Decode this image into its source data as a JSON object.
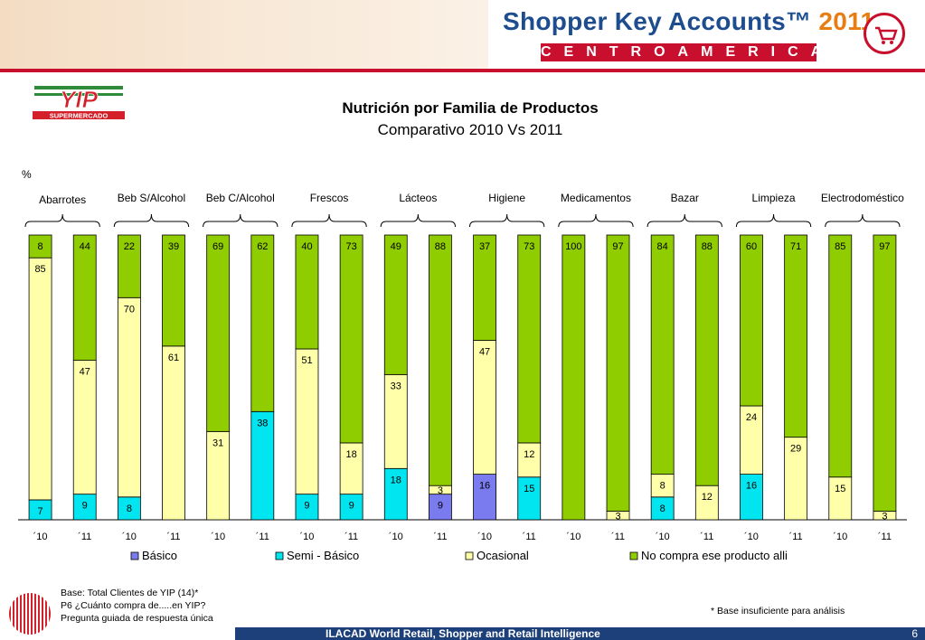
{
  "header": {
    "title_main": "Shopper Key Accounts™",
    "title_year": "2011",
    "subtitle": "CENTROAMERICA",
    "logo_icon": "shopping-cart-icon"
  },
  "brand_logo": {
    "text": "YIP",
    "tagline": "SUPERMERCADO"
  },
  "chart_data": {
    "type": "bar",
    "stacked": true,
    "title": "Nutrición por Familia de Productos",
    "subtitle": "Comparativo 2010 Vs 2011",
    "ylabel": "%",
    "ylim": [
      0,
      100
    ],
    "groups": [
      "Abarrotes",
      "Beb S/Alcohol",
      "Beb C/Alcohol",
      "Frescos",
      "Lácteos",
      "Higiene",
      "Medicamentos",
      "Bazar",
      "Limpieza",
      "Electrodoméstico"
    ],
    "categories": [
      "´10",
      "´11",
      "´10",
      "´11",
      "´10",
      "´11",
      "´10",
      "´11",
      "´10",
      "´11",
      "´10",
      "´11",
      "´10",
      "´11",
      "´10",
      "´11",
      "´10",
      "´11",
      "´10",
      "´11"
    ],
    "series": [
      {
        "name": "Básico",
        "color": "#7b7bf0",
        "values": [
          0,
          0,
          0,
          0,
          0,
          0,
          0,
          0,
          0,
          9,
          16,
          0,
          0,
          0,
          0,
          0,
          0,
          0,
          0,
          0
        ]
      },
      {
        "name": "Semi - Básico",
        "color": "#00e5f0",
        "values": [
          7,
          9,
          8,
          0,
          0,
          38,
          9,
          9,
          18,
          0,
          0,
          15,
          0,
          0,
          8,
          0,
          16,
          0,
          0,
          0
        ]
      },
      {
        "name": "Ocasional",
        "color": "#ffffaa",
        "values": [
          85,
          47,
          70,
          61,
          31,
          0,
          51,
          18,
          33,
          3,
          47,
          12,
          0,
          3,
          8,
          12,
          24,
          29,
          15,
          3
        ]
      },
      {
        "name": "No compra ese producto alli",
        "color": "#8fcc00",
        "values": [
          8,
          44,
          22,
          39,
          69,
          62,
          40,
          73,
          49,
          88,
          37,
          73,
          100,
          97,
          84,
          88,
          60,
          71,
          85,
          97
        ]
      }
    ],
    "legend_position": "bottom",
    "grid": false
  },
  "footer": {
    "note_lines": [
      "Base: Total Clientes de YIP (14)*",
      "P6 ¿Cuánto compra de.....en YIP?",
      "Pregunta guiada de respuesta única"
    ],
    "insufficient_base": "* Base insuficiente para análisis",
    "bar_text": "ILACAD World Retail, Shopper and Retail Intelligence",
    "page_number": "6"
  }
}
